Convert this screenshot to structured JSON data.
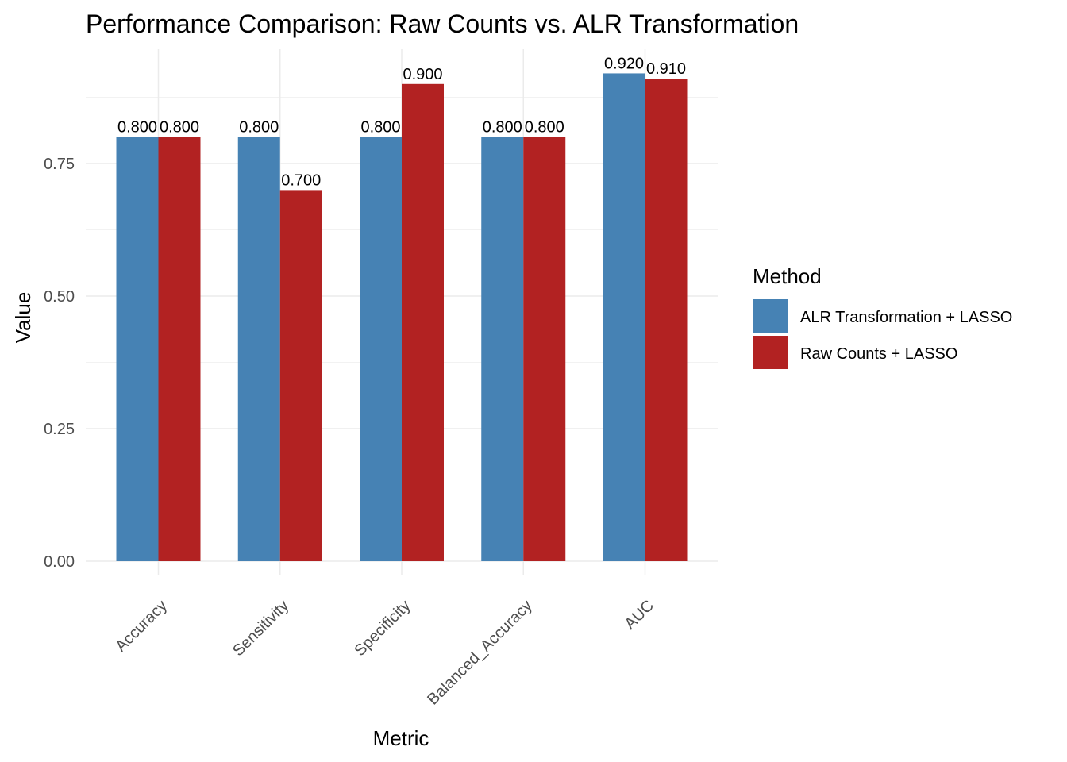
{
  "chart_data": {
    "type": "bar",
    "title": "Performance Comparison: Raw Counts vs. ALR Transformation",
    "xlabel": "Metric",
    "ylabel": "Value",
    "categories": [
      "Accuracy",
      "Sensitivity",
      "Specificity",
      "Balanced_Accuracy",
      "AUC"
    ],
    "series": [
      {
        "name": "ALR Transformation + LASSO",
        "color": "#4682B4",
        "values": [
          0.8,
          0.8,
          0.8,
          0.8,
          0.92
        ],
        "labels": [
          "0.800",
          "0.800",
          "0.800",
          "0.800",
          "0.920"
        ]
      },
      {
        "name": "Raw Counts + LASSO",
        "color": "#B22222",
        "values": [
          0.8,
          0.7,
          0.9,
          0.8,
          0.91
        ],
        "labels": [
          "0.800",
          "0.700",
          "0.900",
          "0.800",
          "0.910"
        ]
      }
    ],
    "ylim": [
      0,
      0.966
    ],
    "yticks": [
      0,
      0.25,
      0.5,
      0.75
    ],
    "ytick_labels": [
      "0.00",
      "0.25",
      "0.50",
      "0.75"
    ],
    "grid": true,
    "legend_title": "Method",
    "legend_position": "right",
    "xtick_rotation_deg": 45
  }
}
